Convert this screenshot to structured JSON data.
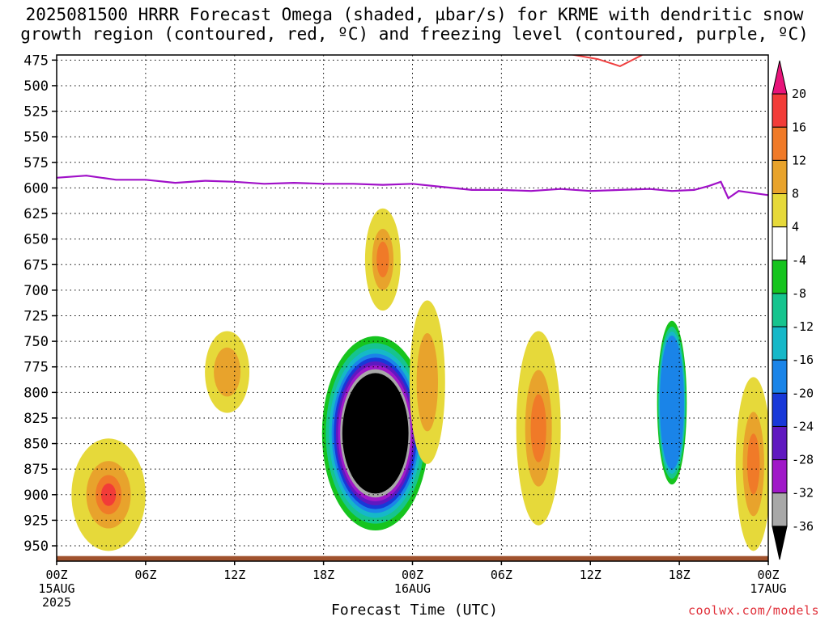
{
  "title_line1": "2025081500 HRRR Forecast Omega (shaded, µbar/s) for KRME with dendritic snow",
  "title_line2": "growth region (contoured, red, ºC) and freezing level (contoured, purple, ºC)",
  "xlabel": "Forecast Time (UTC)",
  "credit": "coolwx.com/models",
  "chart_data": {
    "type": "heatmap",
    "title": "2025081500 HRRR Forecast Omega (shaded, µbar/s) for KRME with dendritic snow growth region (contoured, red, ºC) and freezing level (contoured, purple, ºC)",
    "xlabel": "Forecast Time (UTC)",
    "ylabel": "",
    "x_range_hours": [
      0,
      48
    ],
    "y_range_hPa": [
      470,
      965
    ],
    "y_inverted": true,
    "grid": true,
    "y_ticks": [
      475,
      500,
      525,
      550,
      575,
      600,
      625,
      650,
      675,
      700,
      725,
      750,
      775,
      800,
      825,
      850,
      875,
      900,
      925,
      950
    ],
    "x_ticks": [
      {
        "hour": 0,
        "label": "00Z",
        "sub": "15AUG",
        "sub2": "2025"
      },
      {
        "hour": 6,
        "label": "06Z",
        "sub": "",
        "sub2": ""
      },
      {
        "hour": 12,
        "label": "12Z",
        "sub": "",
        "sub2": ""
      },
      {
        "hour": 18,
        "label": "18Z",
        "sub": "",
        "sub2": ""
      },
      {
        "hour": 24,
        "label": "00Z",
        "sub": "16AUG",
        "sub2": ""
      },
      {
        "hour": 30,
        "label": "06Z",
        "sub": "",
        "sub2": ""
      },
      {
        "hour": 36,
        "label": "12Z",
        "sub": "",
        "sub2": ""
      },
      {
        "hour": 42,
        "label": "18Z",
        "sub": "",
        "sub2": ""
      },
      {
        "hour": 48,
        "label": "00Z",
        "sub": "17AUG",
        "sub2": ""
      }
    ],
    "colorbar": {
      "labels": [
        20,
        16,
        12,
        8,
        4,
        -4,
        -8,
        -12,
        -16,
        -20,
        -24,
        -28,
        -32,
        -36
      ],
      "colors": [
        "#e8147a",
        "#f23c38",
        "#f07a28",
        "#e8a32c",
        "#e6d93a",
        "#ffffff",
        "#16c41e",
        "#16c48e",
        "#16b8c8",
        "#1a84e8",
        "#1838d8",
        "#6018c0",
        "#a018c8",
        "#a8a8a8",
        "#000000"
      ]
    },
    "omega_features": [
      {
        "t": 21.5,
        "p": 840,
        "dt": 3.6,
        "dp": 95,
        "omega_min": -36,
        "note": "strong ascent core"
      },
      {
        "t": 3.5,
        "p": 900,
        "dt": 2.5,
        "dp": 55,
        "omega_max": 16
      },
      {
        "t": 11.5,
        "p": 780,
        "dt": 1.5,
        "dp": 40,
        "omega_max": 8
      },
      {
        "t": 22.0,
        "p": 670,
        "dt": 1.2,
        "dp": 50,
        "omega_max": 12
      },
      {
        "t": 25.0,
        "p": 790,
        "dt": 1.2,
        "dp": 80,
        "omega_max": 8
      },
      {
        "t": 32.5,
        "p": 835,
        "dt": 1.5,
        "dp": 95,
        "omega_max": 12
      },
      {
        "t": 41.5,
        "p": 810,
        "dt": 1.0,
        "dp": 80,
        "omega_min": -16
      },
      {
        "t": 47.0,
        "p": 870,
        "dt": 1.2,
        "dp": 85,
        "omega_max": 12
      }
    ],
    "freezing_level_hPa": [
      [
        0,
        590
      ],
      [
        2,
        588
      ],
      [
        4,
        592
      ],
      [
        6,
        592
      ],
      [
        8,
        595
      ],
      [
        10,
        593
      ],
      [
        12,
        594
      ],
      [
        14,
        596
      ],
      [
        16,
        595
      ],
      [
        18,
        596
      ],
      [
        20,
        596
      ],
      [
        22,
        597
      ],
      [
        24,
        596
      ],
      [
        26,
        599
      ],
      [
        28,
        602
      ],
      [
        30,
        602
      ],
      [
        32,
        603
      ],
      [
        34,
        601
      ],
      [
        36,
        603
      ],
      [
        38,
        602
      ],
      [
        40,
        601
      ],
      [
        41.5,
        603
      ],
      [
        43,
        602
      ],
      [
        44,
        598
      ],
      [
        44.8,
        594
      ],
      [
        45.3,
        610
      ],
      [
        46,
        603
      ],
      [
        48,
        607
      ]
    ],
    "dgz_contour_hPa": [
      [
        34.5,
        469
      ],
      [
        36.5,
        474
      ],
      [
        38.0,
        481
      ],
      [
        39.5,
        470
      ]
    ],
    "ground_level_hPa": 960
  }
}
